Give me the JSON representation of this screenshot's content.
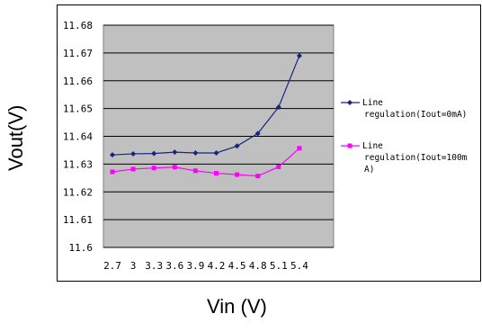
{
  "chart_data": {
    "type": "line",
    "xlabel": "Vin (V)",
    "ylabel": "Vout(V)",
    "categories": [
      "2.7",
      "3",
      "3.3",
      "3.6",
      "3.9",
      "4.2",
      "4.5",
      "4.8",
      "5.1",
      "5.4"
    ],
    "ylim": [
      11.6,
      11.68
    ],
    "yticks": [
      "11.68",
      "11.67",
      "11.66",
      "11.65",
      "11.64",
      "11.63",
      "11.62",
      "11.61",
      "11.6"
    ],
    "grid": "horizontal",
    "legend_position": "right",
    "series": [
      {
        "name": "Line regulation(Iout=0mA)",
        "legend_lines": [
          "Line",
          "regulation(Iout=0mA)"
        ],
        "color": "#1a237e",
        "marker": "diamond",
        "values": [
          11.6333,
          11.6337,
          11.6338,
          11.6343,
          11.634,
          11.634,
          11.6365,
          11.641,
          11.6505,
          11.669
        ]
      },
      {
        "name": "Line regulation(Iout=100mA)",
        "legend_lines": [
          "Line",
          "regulation(Iout=100m",
          "A)"
        ],
        "color": "#ff00ff",
        "marker": "square",
        "values": [
          11.6272,
          11.6282,
          11.6286,
          11.6289,
          11.6276,
          11.6267,
          11.6262,
          11.6257,
          11.629,
          11.6357
        ]
      }
    ],
    "colors": {
      "plot_background": "#c0c0c0",
      "gridline": "#000000"
    }
  }
}
